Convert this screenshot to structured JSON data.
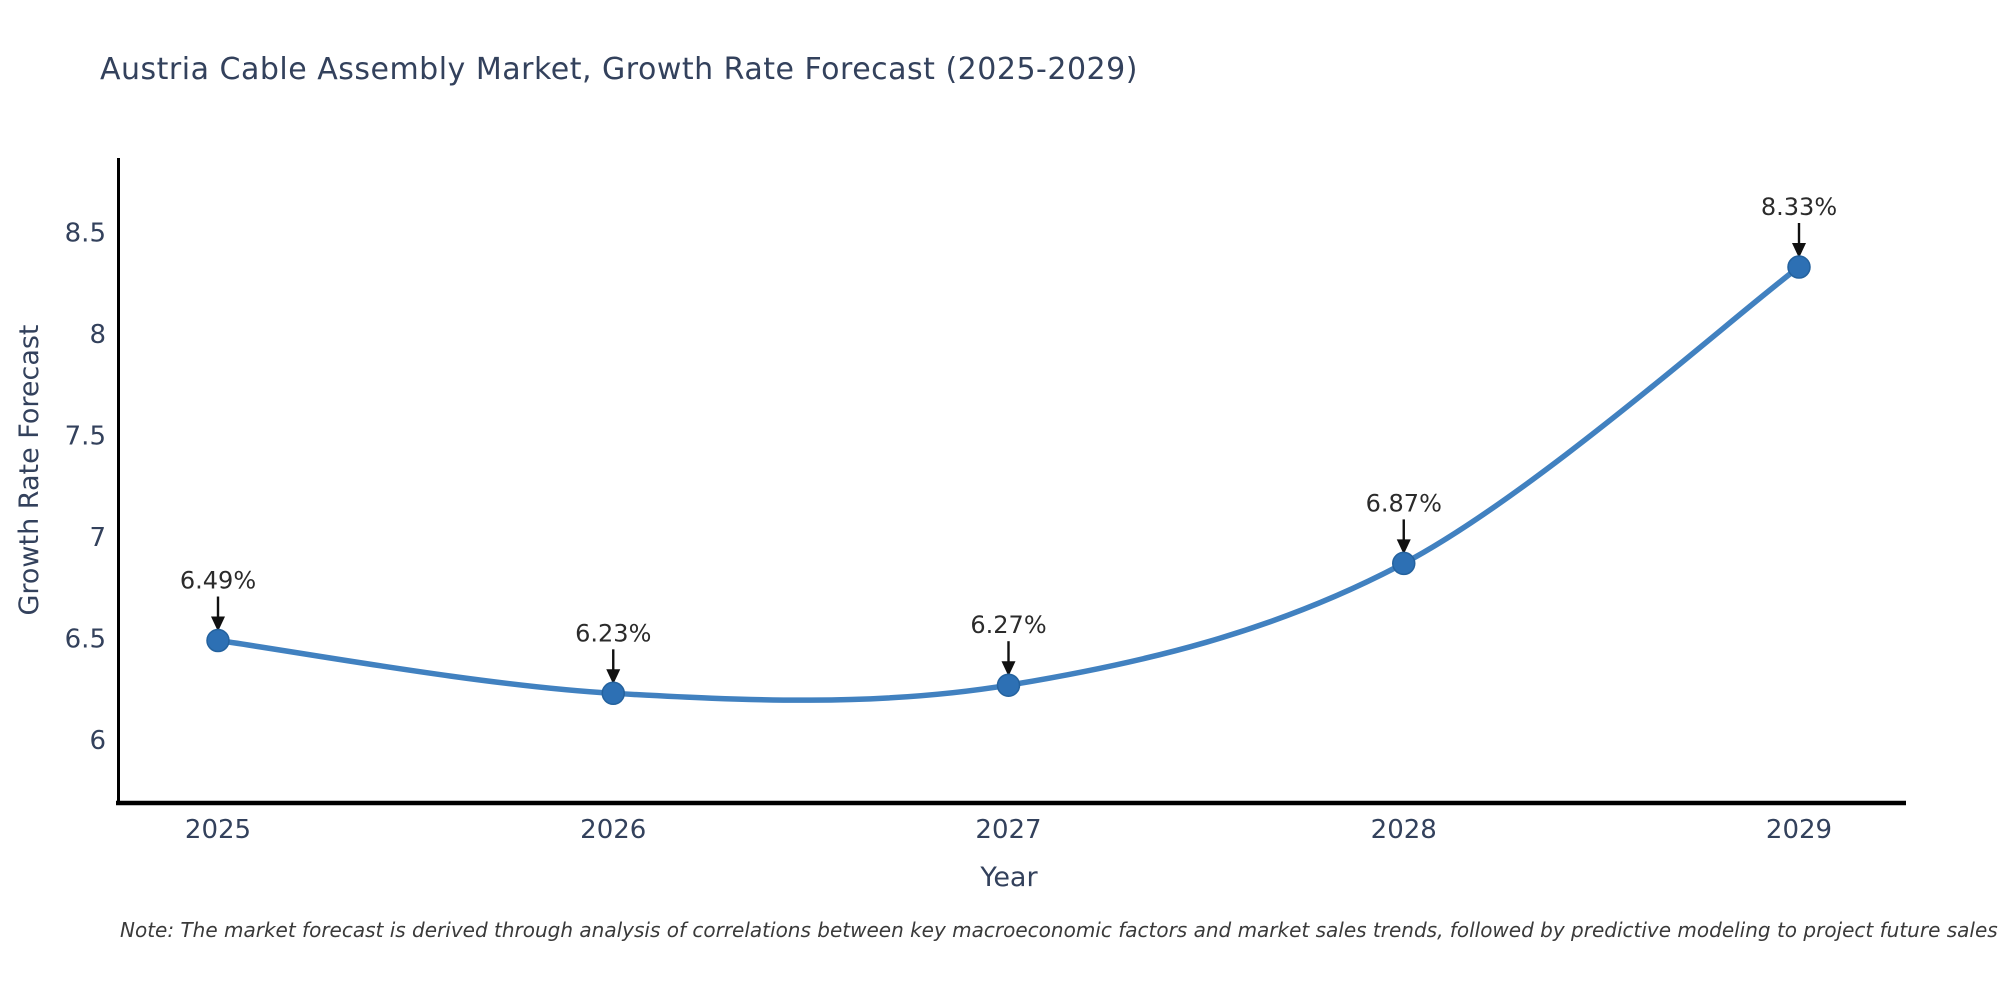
{
  "title": "Austria Cable Assembly Market, Growth Rate Forecast (2025-2029)",
  "note": "Note: The market forecast is derived through analysis of correlations between key macroeconomic factors and market sales trends, followed by predictive modeling to project future sales",
  "chart_data": {
    "type": "line",
    "title": "Austria Cable Assembly Market, Growth Rate Forecast (2025-2029)",
    "xlabel": "Year",
    "ylabel": "Growth Rate Forecast",
    "x": [
      2025,
      2026,
      2027,
      2028,
      2029
    ],
    "series": [
      {
        "name": "Growth Rate Forecast",
        "values": [
          6.49,
          6.23,
          6.27,
          6.87,
          8.33
        ]
      }
    ],
    "point_labels": [
      "6.49%",
      "6.23%",
      "6.27%",
      "6.87%",
      "8.33%"
    ],
    "xticks": [
      "2025",
      "2026",
      "2027",
      "2028",
      "2029"
    ],
    "yticks": [
      6,
      6.5,
      7,
      7.5,
      8,
      8.5
    ],
    "ylim": [
      5.7,
      8.9
    ],
    "grid": false,
    "legend": "none",
    "curve": "spline",
    "annotation_arrows": true,
    "colors": {
      "line": "#4181c0",
      "marker_fill": "#2d70b4",
      "marker_edge": "#24629e",
      "axis": "#000000",
      "tick_text": "#33415c",
      "annotation_text": "#2b2b2b",
      "arrow": "#111111"
    }
  }
}
